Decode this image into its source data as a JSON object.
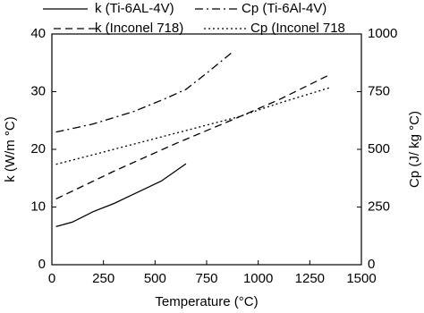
{
  "chart_data": {
    "type": "line",
    "x_label": "Temperature (°C)",
    "y_label": "k (W/m °C)",
    "y2_label": "Cp (J/ kg °C)",
    "xlim": [
      0,
      1500
    ],
    "xticks": [
      0,
      250,
      500,
      750,
      1000,
      1250,
      1500
    ],
    "ylim": [
      0,
      40
    ],
    "yticks": [
      0,
      10,
      20,
      30,
      40
    ],
    "y2lim": [
      0,
      1000
    ],
    "y2ticks": [
      0,
      250,
      500,
      750,
      1000
    ],
    "grid": false,
    "legend": "top",
    "series": [
      {
        "name": "k (Ti-6AL-4V)",
        "color": "#000000",
        "dash": "solid",
        "axis": "y",
        "x": [
          20,
          100,
          200,
          300,
          400,
          530,
          650
        ],
        "values": [
          6.6,
          7.4,
          9.2,
          10.6,
          12.3,
          14.5,
          17.5
        ]
      },
      {
        "name": "Cp (Ti-6Al-4V)",
        "color": "#000000",
        "dash": "dashdot",
        "axis": "y2",
        "x": [
          20,
          200,
          400,
          550,
          650,
          750,
          880
        ],
        "values": [
          575,
          610,
          665,
          720,
          760,
          830,
          925
        ]
      },
      {
        "name": "k (Inconel 718)",
        "color": "#000000",
        "dash": "dashed",
        "axis": "y",
        "x": [
          20,
          300,
          600,
          900,
          1100,
          1350
        ],
        "values": [
          11.4,
          16.2,
          21.0,
          25.5,
          28.6,
          33.0
        ]
      },
      {
        "name": "Cp (Inconel 718",
        "color": "#000000",
        "dash": "dotted",
        "axis": "y2",
        "x": [
          20,
          300,
          600,
          900,
          1100,
          1350
        ],
        "values": [
          435,
          500,
          570,
          640,
          700,
          768
        ]
      }
    ]
  }
}
